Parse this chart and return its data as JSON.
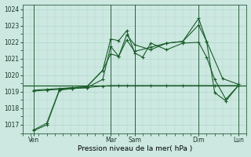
{
  "xlabel": "Pression niveau de la mer( hPa )",
  "bg_color": "#cce8e0",
  "grid_color": "#b0d8cc",
  "line_color": "#1a5c2a",
  "vline_color": "#2a6040",
  "ylim": [
    1016.5,
    1024.3
  ],
  "xlim": [
    0,
    14
  ],
  "yticks": [
    1017,
    1018,
    1019,
    1020,
    1021,
    1022,
    1023,
    1024
  ],
  "xtick_positions": [
    0.7,
    5.5,
    7.0,
    11.0,
    13.5
  ],
  "xtick_labels": [
    "Ven",
    "Mar",
    "Sam",
    "Dim",
    "Lun"
  ],
  "vlines_x": [
    0.7,
    5.5,
    7.0,
    11.0,
    13.5
  ],
  "hline_y": 1019.4,
  "line1_x": [
    0.7,
    1.5,
    2.3,
    3.1,
    4.0,
    5.0,
    5.5,
    6.0,
    6.5,
    7.0,
    8.0,
    9.0,
    10.0,
    11.0,
    12.0,
    13.5
  ],
  "line1_y": [
    1016.7,
    1017.1,
    1019.15,
    1019.2,
    1019.25,
    1019.35,
    1019.38,
    1019.38,
    1019.38,
    1019.38,
    1019.38,
    1019.38,
    1019.38,
    1019.38,
    1019.38,
    1019.38
  ],
  "line2_x": [
    0.7,
    1.5,
    2.3,
    3.1,
    4.0,
    5.0,
    5.5,
    6.0,
    6.5,
    7.0,
    7.5,
    8.0,
    9.0,
    10.0,
    11.0,
    11.5,
    12.0,
    12.7,
    13.5
  ],
  "line2_y": [
    1019.1,
    1019.15,
    1019.2,
    1019.25,
    1019.3,
    1020.3,
    1022.2,
    1022.1,
    1022.7,
    1021.35,
    1021.1,
    1021.95,
    1021.55,
    1021.95,
    1022.0,
    1021.1,
    1019.75,
    1018.55,
    1019.4
  ],
  "line3_x": [
    0.7,
    1.5,
    2.3,
    3.1,
    4.0,
    5.0,
    5.5,
    6.0,
    6.5,
    7.0,
    8.0,
    9.0,
    10.0,
    11.0,
    11.5,
    12.5,
    13.5
  ],
  "line3_y": [
    1019.05,
    1019.1,
    1019.15,
    1019.25,
    1019.3,
    1020.3,
    1021.3,
    1021.15,
    1022.15,
    1021.45,
    1021.7,
    1021.95,
    1022.05,
    1023.05,
    1022.05,
    1019.8,
    1019.45
  ],
  "line4_x": [
    0.7,
    1.5,
    2.3,
    3.1,
    4.0,
    5.0,
    5.5,
    6.0,
    6.5,
    7.0,
    8.0,
    9.0,
    10.0,
    11.0,
    11.5,
    12.0,
    12.7,
    13.5
  ],
  "line4_y": [
    1016.65,
    1017.0,
    1019.1,
    1019.2,
    1019.25,
    1019.75,
    1021.75,
    1021.15,
    1022.45,
    1021.85,
    1021.55,
    1021.95,
    1022.05,
    1023.45,
    1022.05,
    1018.95,
    1018.45,
    1019.4
  ]
}
